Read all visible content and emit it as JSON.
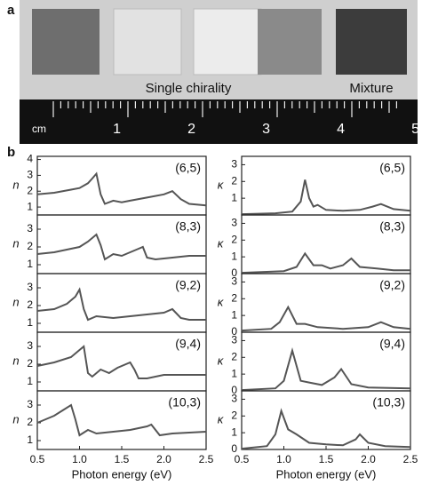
{
  "panel_a": {
    "label": "a",
    "caption_left": "Single chirality",
    "caption_right": "Mixture",
    "ruler_unit": "cm",
    "ruler_numbers": [
      "1",
      "2",
      "3",
      "4",
      "5"
    ]
  },
  "panel_b": {
    "label": "b"
  },
  "chart_data": [
    {
      "type": "line",
      "label": "(6,5)",
      "ylabel": "n",
      "color": "#555",
      "xlim": [
        0.5,
        2.5
      ],
      "ylim": [
        0.5,
        4.2
      ],
      "yticks": [
        1,
        2,
        3,
        4
      ],
      "x": [
        0.5,
        0.7,
        0.9,
        1.0,
        1.1,
        1.15,
        1.2,
        1.25,
        1.3,
        1.4,
        1.5,
        1.6,
        1.8,
        2.0,
        2.1,
        2.2,
        2.3,
        2.5
      ],
      "values": [
        1.8,
        1.9,
        2.1,
        2.2,
        2.5,
        2.8,
        3.1,
        1.8,
        1.2,
        1.4,
        1.3,
        1.4,
        1.6,
        1.8,
        2.0,
        1.5,
        1.2,
        1.1
      ]
    },
    {
      "type": "line",
      "label": "(8,3)",
      "ylabel": "n",
      "color": "#555",
      "xlim": [
        0.5,
        2.5
      ],
      "ylim": [
        0.5,
        3.8
      ],
      "yticks": [
        1,
        2,
        3
      ],
      "x": [
        0.5,
        0.7,
        0.9,
        1.0,
        1.1,
        1.2,
        1.25,
        1.3,
        1.4,
        1.5,
        1.6,
        1.7,
        1.75,
        1.8,
        1.9,
        2.1,
        2.3,
        2.5
      ],
      "values": [
        1.6,
        1.7,
        1.9,
        2.0,
        2.3,
        2.7,
        2.1,
        1.3,
        1.6,
        1.5,
        1.7,
        1.9,
        2.0,
        1.4,
        1.3,
        1.4,
        1.5,
        1.5
      ]
    },
    {
      "type": "line",
      "label": "(9,2)",
      "ylabel": "n",
      "color": "#555",
      "xlim": [
        0.5,
        2.5
      ],
      "ylim": [
        0.5,
        3.8
      ],
      "yticks": [
        1,
        2,
        3
      ],
      "x": [
        0.5,
        0.7,
        0.85,
        0.95,
        1.0,
        1.05,
        1.1,
        1.2,
        1.4,
        1.6,
        1.8,
        2.0,
        2.1,
        2.2,
        2.3,
        2.5
      ],
      "values": [
        1.7,
        1.8,
        2.1,
        2.5,
        2.9,
        1.8,
        1.2,
        1.4,
        1.3,
        1.4,
        1.5,
        1.6,
        1.8,
        1.3,
        1.2,
        1.2
      ]
    },
    {
      "type": "line",
      "label": "(9,4)",
      "ylabel": "n",
      "color": "#555",
      "xlim": [
        0.5,
        2.5
      ],
      "ylim": [
        0.5,
        3.8
      ],
      "yticks": [
        1,
        2,
        3
      ],
      "x": [
        0.5,
        0.7,
        0.9,
        1.0,
        1.05,
        1.1,
        1.15,
        1.25,
        1.35,
        1.45,
        1.6,
        1.65,
        1.7,
        1.8,
        2.0,
        2.5
      ],
      "values": [
        1.9,
        2.1,
        2.4,
        2.8,
        3.0,
        1.5,
        1.3,
        1.7,
        1.5,
        1.8,
        2.1,
        1.7,
        1.2,
        1.2,
        1.4,
        1.4
      ]
    },
    {
      "type": "line",
      "label": "(10,3)",
      "ylabel": "n",
      "xlabel": "Photon energy (eV)",
      "color": "#555",
      "xlim": [
        0.5,
        2.5
      ],
      "ylim": [
        0.5,
        3.8
      ],
      "yticks": [
        1,
        2,
        3
      ],
      "xticks": [
        0.5,
        {
          "value": 1,
          "label": "1.0"
        },
        1.5,
        {
          "value": 2,
          "label": "2.0"
        },
        2.5
      ],
      "x": [
        0.5,
        0.6,
        0.7,
        0.8,
        0.9,
        0.95,
        1.0,
        1.1,
        1.2,
        1.4,
        1.6,
        1.8,
        1.85,
        1.95,
        2.1,
        2.5
      ],
      "values": [
        2.0,
        2.2,
        2.4,
        2.7,
        3.0,
        2.2,
        1.3,
        1.6,
        1.4,
        1.5,
        1.6,
        1.8,
        1.9,
        1.3,
        1.4,
        1.5
      ]
    },
    {
      "type": "line",
      "label": "(6,5)",
      "ylabel": "κ",
      "color": "#555",
      "xlim": [
        0.5,
        2.5
      ],
      "ylim": [
        0,
        3.5
      ],
      "yticks": [
        1,
        2,
        3
      ],
      "x": [
        0.5,
        0.9,
        1.1,
        1.2,
        1.25,
        1.3,
        1.35,
        1.4,
        1.5,
        1.7,
        1.9,
        2.05,
        2.15,
        2.3,
        2.5
      ],
      "values": [
        0.05,
        0.1,
        0.2,
        0.8,
        2.1,
        1.0,
        0.5,
        0.6,
        0.3,
        0.25,
        0.3,
        0.5,
        0.65,
        0.35,
        0.25
      ]
    },
    {
      "type": "line",
      "label": "(8,3)",
      "ylabel": "κ",
      "color": "#555",
      "xlim": [
        0.5,
        2.5
      ],
      "ylim": [
        0,
        3.5
      ],
      "yticks": [
        0,
        1,
        2,
        3
      ],
      "x": [
        0.5,
        1.0,
        1.15,
        1.25,
        1.35,
        1.45,
        1.55,
        1.7,
        1.8,
        1.9,
        2.1,
        2.3,
        2.5
      ],
      "values": [
        0.05,
        0.15,
        0.4,
        1.2,
        0.5,
        0.5,
        0.3,
        0.5,
        0.9,
        0.4,
        0.3,
        0.2,
        0.2
      ]
    },
    {
      "type": "line",
      "label": "(9,2)",
      "ylabel": "κ",
      "color": "#555",
      "xlim": [
        0.5,
        2.5
      ],
      "ylim": [
        0,
        3.5
      ],
      "yticks": [
        0,
        1,
        2,
        3
      ],
      "x": [
        0.5,
        0.85,
        0.95,
        1.05,
        1.15,
        1.25,
        1.4,
        1.7,
        2.0,
        2.15,
        2.3,
        2.5
      ],
      "values": [
        0.1,
        0.2,
        0.6,
        1.5,
        0.5,
        0.5,
        0.3,
        0.2,
        0.3,
        0.6,
        0.3,
        0.2
      ]
    },
    {
      "type": "line",
      "label": "(9,4)",
      "ylabel": "κ",
      "color": "#555",
      "xlim": [
        0.5,
        2.5
      ],
      "ylim": [
        0,
        3.5
      ],
      "yticks": [
        0,
        1,
        2,
        3
      ],
      "x": [
        0.5,
        0.9,
        1.0,
        1.1,
        1.2,
        1.3,
        1.45,
        1.6,
        1.68,
        1.8,
        2.0,
        2.5
      ],
      "values": [
        0.05,
        0.15,
        0.6,
        2.4,
        0.6,
        0.5,
        0.35,
        0.8,
        1.3,
        0.4,
        0.2,
        0.15
      ]
    },
    {
      "type": "line",
      "label": "(10,3)",
      "ylabel": "κ",
      "xlabel": "Photon energy (eV)",
      "color": "#555",
      "xlim": [
        0.5,
        2.5
      ],
      "ylim": [
        0,
        3.5
      ],
      "yticks": [
        0,
        1,
        2,
        3
      ],
      "xticks": [
        0.5,
        {
          "value": 1,
          "label": "1.0"
        },
        1.5,
        {
          "value": 2,
          "label": "2.0"
        },
        2.5
      ],
      "x": [
        0.5,
        0.8,
        0.9,
        0.97,
        1.05,
        1.15,
        1.3,
        1.5,
        1.7,
        1.85,
        1.9,
        2.0,
        2.2,
        2.5
      ],
      "values": [
        0.05,
        0.2,
        0.9,
        2.3,
        1.2,
        0.9,
        0.4,
        0.3,
        0.25,
        0.6,
        0.9,
        0.4,
        0.2,
        0.15
      ]
    }
  ]
}
